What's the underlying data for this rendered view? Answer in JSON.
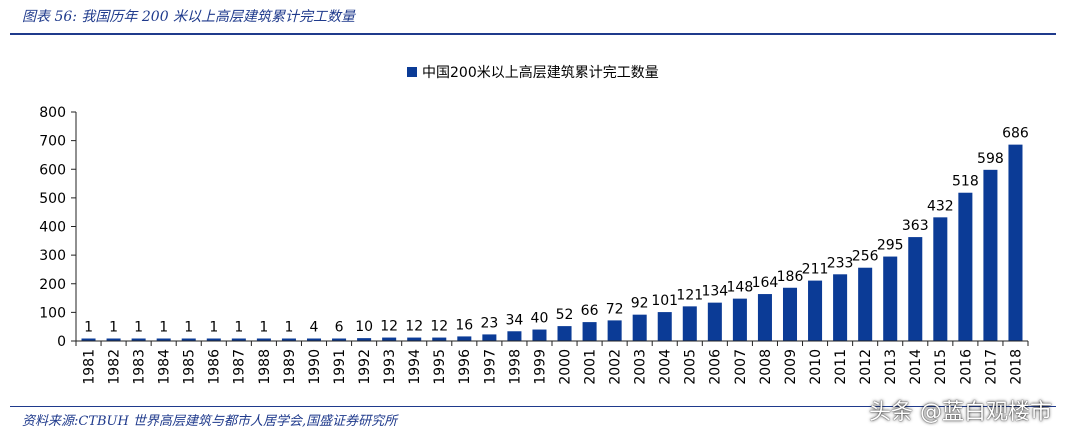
{
  "header": {
    "title": "图表 56:  我国历年 200 米以上高层建筑累计完工数量"
  },
  "footer": {
    "source": "资料来源:CTBUH 世界高层建筑与都市人居学会,国盛证券研究所",
    "watermark": "头条 @蓝白观楼市"
  },
  "colors": {
    "bar": "#0b3b96",
    "rule": "#1f3a8c",
    "axis": "#222222"
  },
  "chart_data": {
    "type": "bar",
    "title": "",
    "xlabel": "",
    "ylabel": "",
    "ylim": [
      0,
      800
    ],
    "yticks": [
      0,
      100,
      200,
      300,
      400,
      500,
      600,
      700,
      800
    ],
    "grid": false,
    "legend_position": "top-center",
    "categories": [
      "1981",
      "1982",
      "1983",
      "1984",
      "1985",
      "1986",
      "1987",
      "1988",
      "1989",
      "1990",
      "1991",
      "1992",
      "1993",
      "1994",
      "1995",
      "1996",
      "1997",
      "1998",
      "1999",
      "2000",
      "2001",
      "2002",
      "2003",
      "2004",
      "2005",
      "2006",
      "2007",
      "2008",
      "2009",
      "2010",
      "2011",
      "2012",
      "2013",
      "2014",
      "2015",
      "2016",
      "2017",
      "2018"
    ],
    "series": [
      {
        "name": "中国200米以上高层建筑累计完工数量",
        "values": [
          1,
          1,
          1,
          1,
          1,
          1,
          1,
          1,
          1,
          4,
          6,
          10,
          12,
          12,
          12,
          16,
          23,
          34,
          40,
          52,
          66,
          72,
          92,
          101,
          121,
          134,
          148,
          164,
          186,
          211,
          233,
          256,
          295,
          363,
          432,
          518,
          598,
          686
        ]
      }
    ]
  }
}
